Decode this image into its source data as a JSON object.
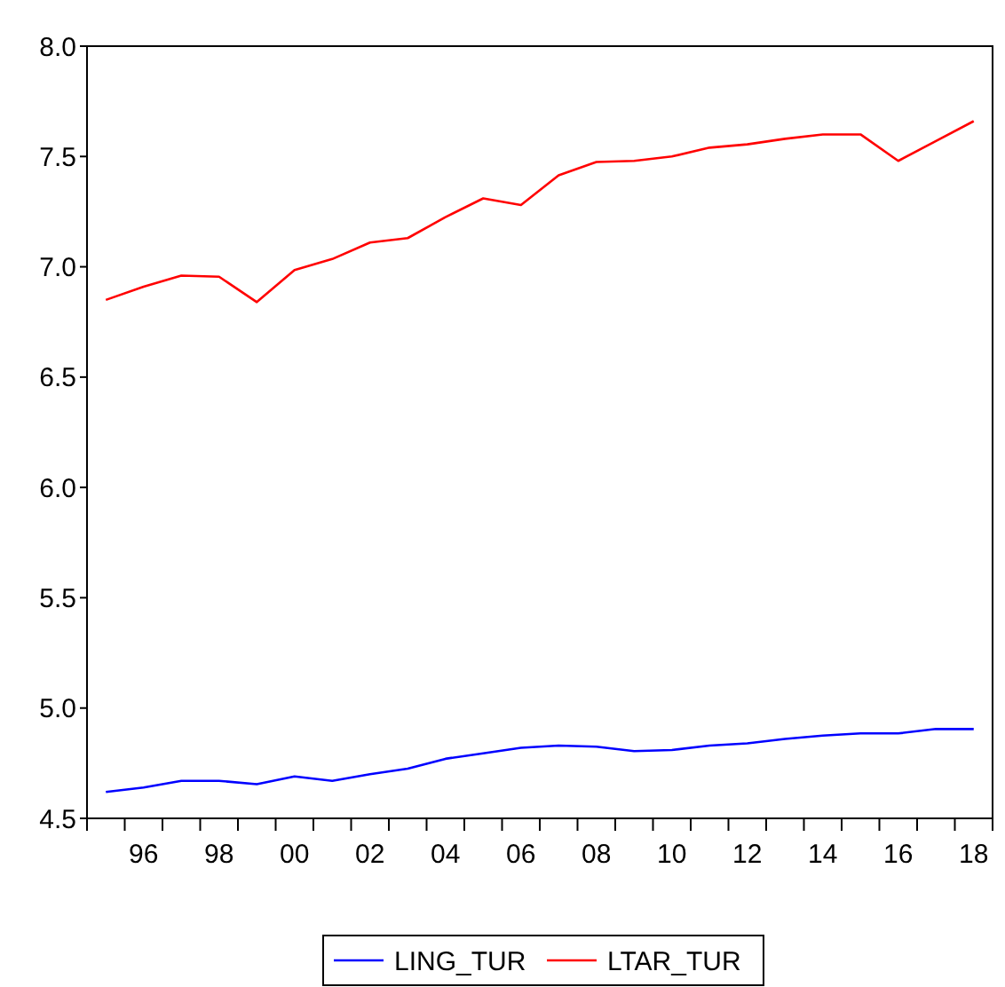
{
  "chart_data": {
    "type": "line",
    "categories": [
      null,
      "96",
      null,
      "98",
      null,
      "00",
      null,
      "02",
      null,
      "04",
      null,
      "06",
      null,
      "08",
      null,
      "10",
      null,
      "12",
      null,
      "14",
      null,
      "16",
      null,
      "18"
    ],
    "series": [
      {
        "name": "LING_TUR",
        "color": "#0000ff",
        "values": [
          4.62,
          4.64,
          4.67,
          4.67,
          4.655,
          4.69,
          4.67,
          4.7,
          4.725,
          4.77,
          4.795,
          4.82,
          4.83,
          4.825,
          4.805,
          4.81,
          4.83,
          4.84,
          4.86,
          4.875,
          4.885,
          4.885,
          4.905,
          4.905
        ]
      },
      {
        "name": "LTAR_TUR",
        "color": "#ff0000",
        "values": [
          6.85,
          6.91,
          6.96,
          6.955,
          6.84,
          6.985,
          7.035,
          7.11,
          7.13,
          7.225,
          7.31,
          7.28,
          7.415,
          7.475,
          7.48,
          7.5,
          7.54,
          7.555,
          7.58,
          7.6,
          7.6,
          7.48,
          7.57,
          7.66
        ]
      }
    ],
    "ylim": [
      4.5,
      8.0
    ],
    "yticks": [
      {
        "value": 4.5,
        "label": "4.5"
      },
      {
        "value": 5,
        "label": "5.0"
      },
      {
        "value": 5.5,
        "label": "5.5"
      },
      {
        "value": 6,
        "label": "6.0"
      },
      {
        "value": 6.5,
        "label": "6.5"
      },
      {
        "value": 7,
        "label": "7.0"
      },
      {
        "value": 7.5,
        "label": "7.5"
      },
      {
        "value": 8,
        "label": "8.0"
      }
    ],
    "legend": "bottom",
    "grid": false
  }
}
